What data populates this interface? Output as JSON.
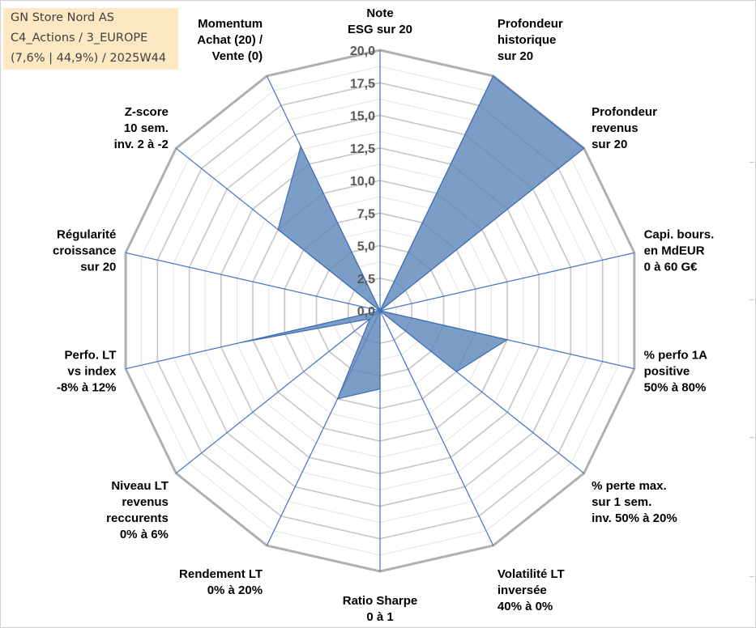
{
  "info": {
    "line1": "GN Store Nord AS",
    "line2": "C4_Actions / 3_EUROPE",
    "line3": "(7,6% | 44,9%) / 2025W44"
  },
  "colors": {
    "fill": "#5f87b8",
    "stroke": "#3c6fb5",
    "grid": "#bfbfbf",
    "spoke": "#4472c4",
    "text": "#000000"
  },
  "chart_data": {
    "type": "radar",
    "title": "",
    "rlim": [
      0,
      20
    ],
    "ticks": [
      "0,0",
      "2,5",
      "5,0",
      "7,5",
      "10,0",
      "12,5",
      "15,0",
      "17,5",
      "20,0"
    ],
    "tick_values": [
      0,
      2.5,
      5,
      7.5,
      10,
      12.5,
      15,
      17.5,
      20
    ],
    "grid": true,
    "categories": [
      [
        "Note",
        "ESG sur 20"
      ],
      [
        "Profondeur",
        "historique",
        "sur 20"
      ],
      [
        "Profondeur",
        "revenus",
        "sur 20"
      ],
      [
        "Capi. bours.",
        "en MdEUR",
        "0 à 60 G€"
      ],
      [
        "% perfo 1A",
        "positive",
        "50% à 80%"
      ],
      [
        "% perte max.",
        "sur 1 sem.",
        "inv. 50% à 20%"
      ],
      [
        "Volatilité LT",
        "inversée",
        "40% à 0%"
      ],
      [
        "Ratio Sharpe",
        "0 à 1"
      ],
      [
        "Rendement LT",
        "0% à 20%"
      ],
      [
        "Niveau LT",
        "revenus",
        "reccurents",
        "0% à 6%"
      ],
      [
        "Perfo. LT",
        "vs index",
        "-8% à 12%"
      ],
      [
        "Régularité",
        "croissance",
        "sur 20"
      ],
      [
        "Z-score",
        "10 sem.",
        "inv. 2 à -2"
      ],
      [
        "Momentum",
        "Achat (20) /",
        "Vente (0)"
      ]
    ],
    "series": [
      {
        "values": [
          0,
          20,
          20,
          0,
          10,
          7.5,
          0,
          6,
          7.5,
          1,
          11,
          0,
          10,
          14
        ]
      }
    ]
  }
}
